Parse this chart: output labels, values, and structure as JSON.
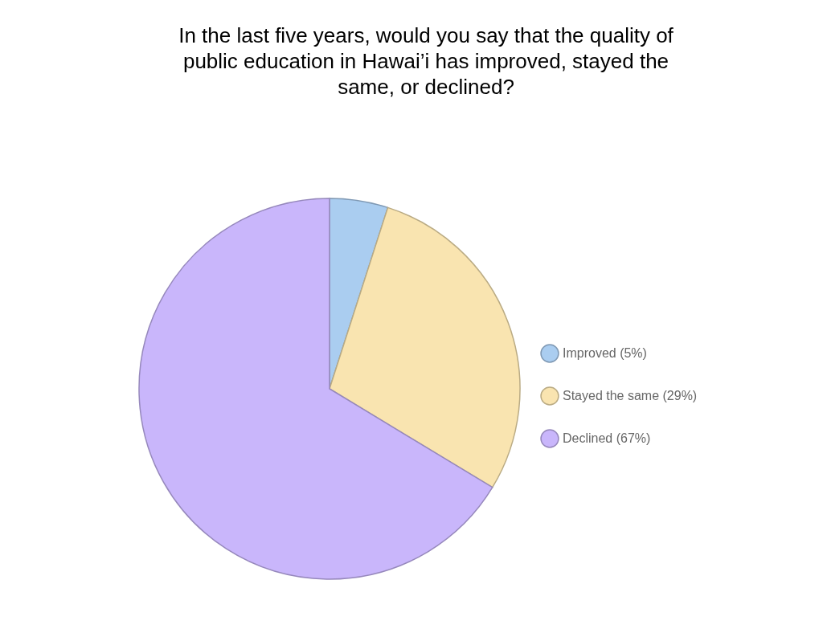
{
  "chart_data": {
    "type": "pie",
    "title": "In the last five years, would you say that the quality of public education in Hawai’i has improved, stayed the same, or declined?",
    "categories": [
      "Improved (5%)",
      "Stayed the same (29%)",
      "Declined (67%)"
    ],
    "values": [
      5,
      29,
      67
    ],
    "colors": [
      "#aacdf0",
      "#f9e4b0",
      "#c9b6fb"
    ],
    "legend": "right"
  }
}
